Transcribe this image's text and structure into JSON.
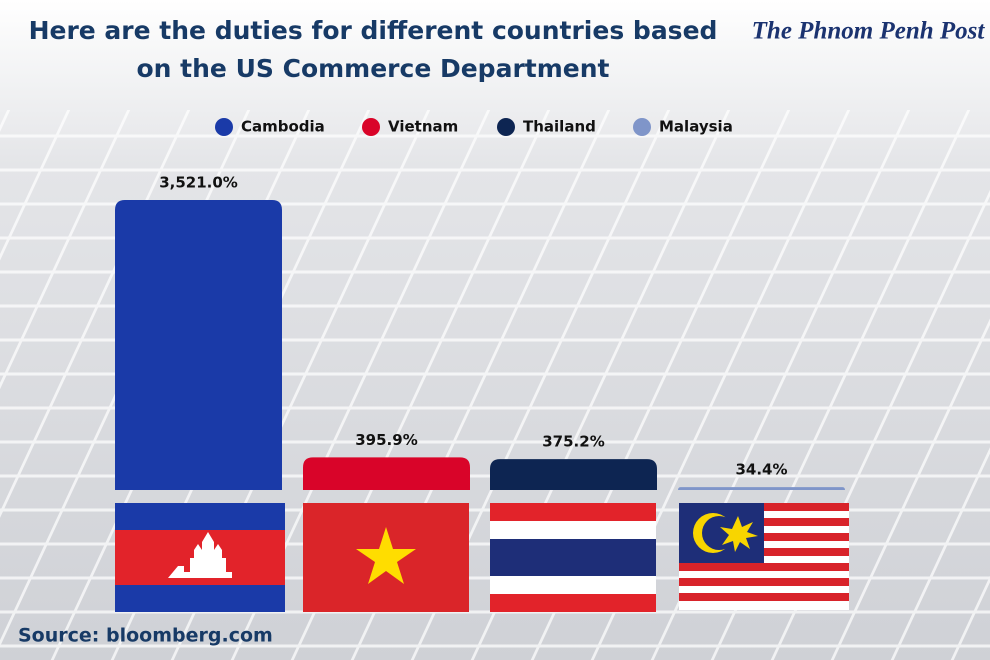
{
  "chart_data": {
    "type": "bar",
    "title": "Here are the duties for different countries based on the US Commerce Department",
    "logo": "The Phnom Penh Post",
    "source": "Source: bloomberg.com",
    "series": [
      {
        "name": "Cambodia",
        "color": "#1a3aa8",
        "values": [
          3521.0
        ],
        "value_labels": [
          "3,521.0%"
        ]
      },
      {
        "name": "Vietnam",
        "color": "#d90429",
        "values": [
          395.9
        ],
        "value_labels": [
          "395.9%"
        ]
      },
      {
        "name": "Thailand",
        "color": "#0d2552",
        "values": [
          375.2
        ],
        "value_labels": [
          "375.2%"
        ]
      },
      {
        "name": "Malaysia",
        "color": "#7f95c9",
        "values": [
          34.4
        ],
        "value_labels": [
          "34.4%"
        ]
      }
    ]
  }
}
